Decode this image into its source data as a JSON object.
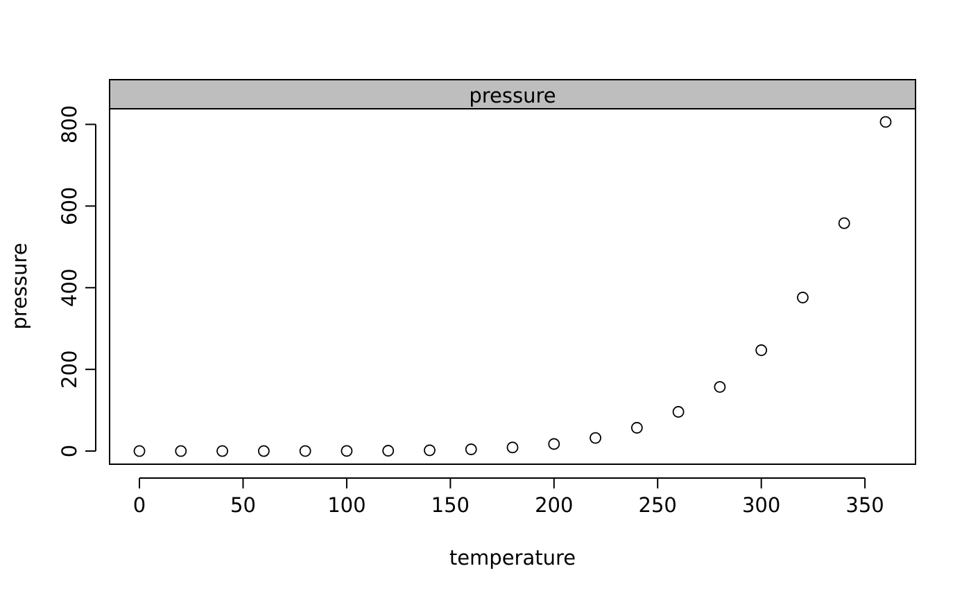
{
  "chart_data": {
    "type": "scatter",
    "panel_title": "pressure",
    "xlabel": "temperature",
    "ylabel": "pressure",
    "xlim": [
      -14.4,
      374.4
    ],
    "ylim": [
      -32.2,
      838.2
    ],
    "x_ticks": [
      0,
      50,
      100,
      150,
      200,
      250,
      300,
      350
    ],
    "y_ticks": [
      0,
      200,
      400,
      600,
      800
    ],
    "grid": false,
    "legend": "none",
    "point_style": "open-circle",
    "x": [
      0,
      20,
      40,
      60,
      80,
      100,
      120,
      140,
      160,
      180,
      200,
      220,
      240,
      260,
      280,
      300,
      320,
      340,
      360
    ],
    "y": [
      0.0002,
      0.0012,
      0.006,
      0.03,
      0.09,
      0.27,
      0.75,
      1.85,
      4.2,
      8.8,
      17.3,
      32.1,
      57.0,
      96.0,
      157.0,
      247.0,
      376.0,
      558.0,
      806.0
    ]
  },
  "colors": {
    "strip_background": "#bebebe",
    "points": "#000000",
    "axes": "#000000"
  }
}
